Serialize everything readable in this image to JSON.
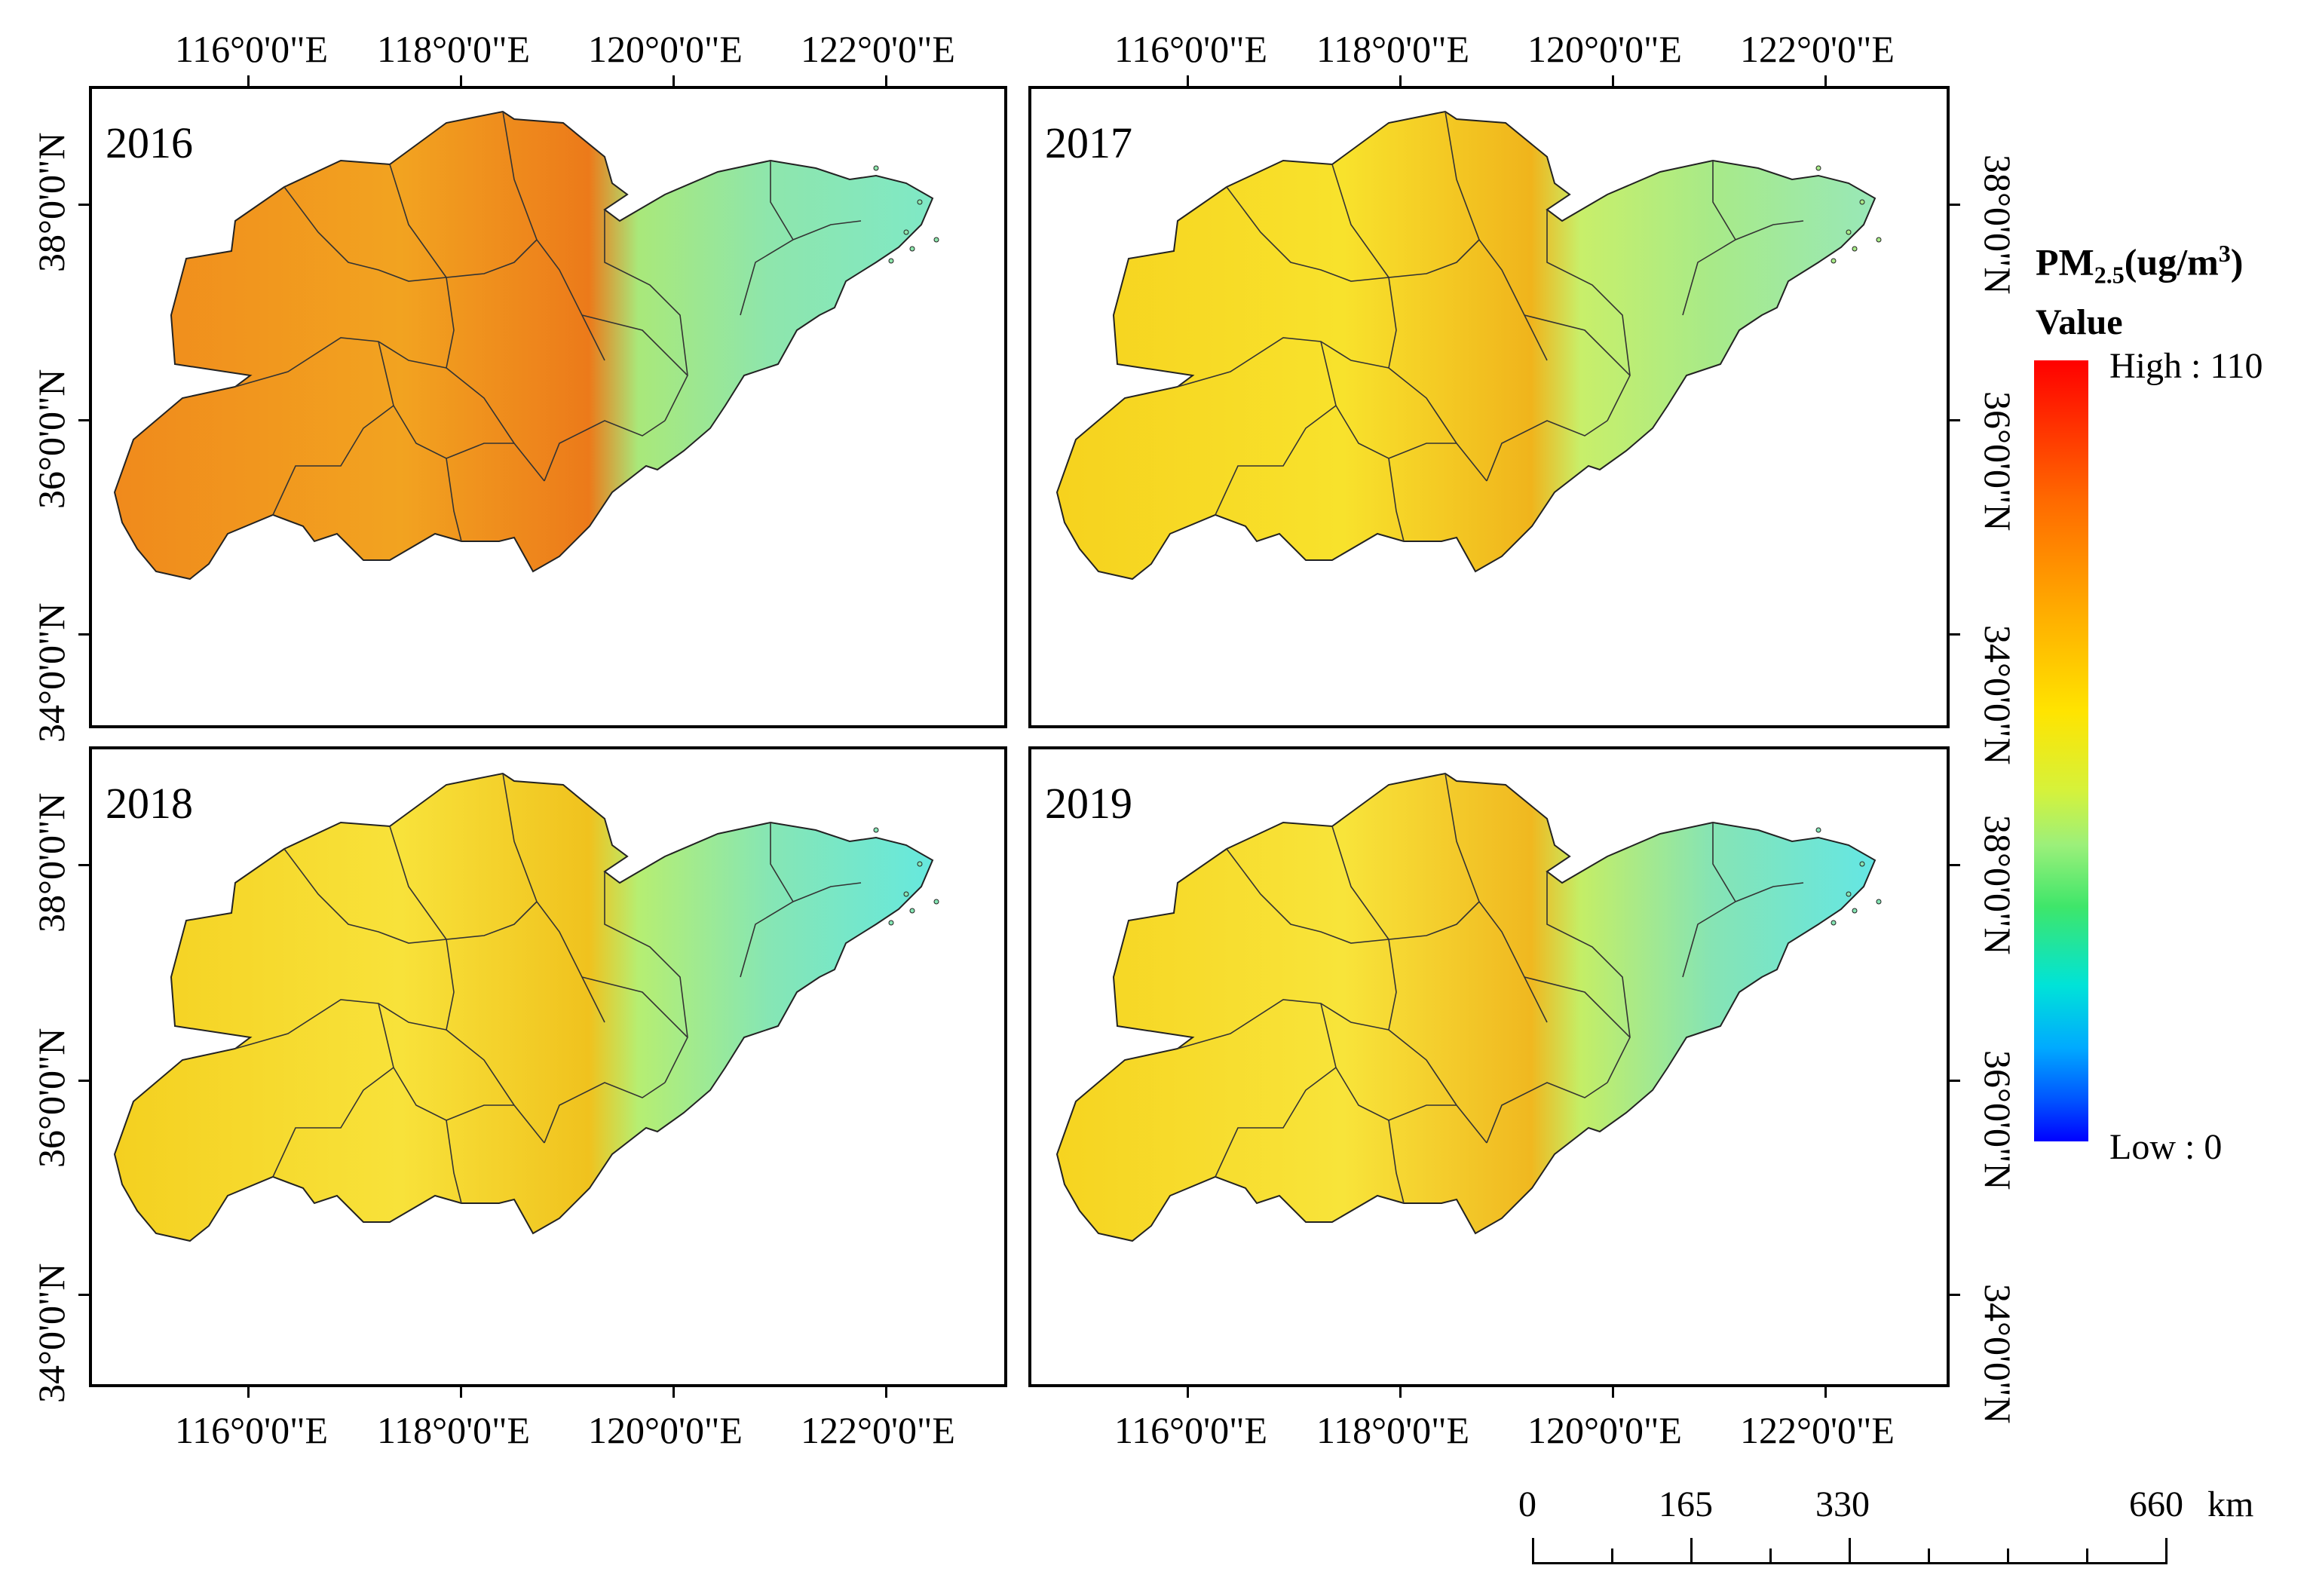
{
  "panels": [
    {
      "year": "2016",
      "fill": [
        "#f08a1c",
        "#f2a320",
        "#ec7a1a"
      ],
      "east": [
        "#a9e87a",
        "#8ee6ac",
        "#7fe8c6"
      ]
    },
    {
      "year": "2017",
      "fill": [
        "#f6d21e",
        "#f8e22c",
        "#f0b41c"
      ],
      "east": [
        "#c8ef6a",
        "#a8ea88",
        "#98e8b8"
      ]
    },
    {
      "year": "2018",
      "fill": [
        "#f4d020",
        "#f8e23a",
        "#f0c21e"
      ],
      "east": [
        "#b6ee72",
        "#86e6b4",
        "#66e8de"
      ]
    },
    {
      "year": "2019",
      "fill": [
        "#f6d420",
        "#f8e43a",
        "#f0b820"
      ],
      "east": [
        "#c4ee66",
        "#86e4b4",
        "#64e6e4"
      ]
    }
  ],
  "axes": {
    "lon_labels": [
      "116°0'0\"E",
      "118°0'0\"E",
      "120°0'0\"E",
      "122°0'0\"E"
    ],
    "lat_labels": [
      "38°0'0\"N",
      "36°0'0\"N",
      "34°0'0\"N"
    ]
  },
  "legend": {
    "title_main": "PM",
    "title_sub": "2.5",
    "title_unit_pre": "(ug/m",
    "title_unit_sup": "3",
    "title_unit_post": ")",
    "value_label": "Value",
    "high_label": "High : 110",
    "low_label": "Low : 0",
    "colors": [
      "#ff0000",
      "#ffe400",
      "#9cf07a",
      "#00e3d8",
      "#0000ff"
    ]
  },
  "scalebar": {
    "labels": [
      "0",
      "165",
      "330",
      "660"
    ],
    "unit": "km"
  }
}
